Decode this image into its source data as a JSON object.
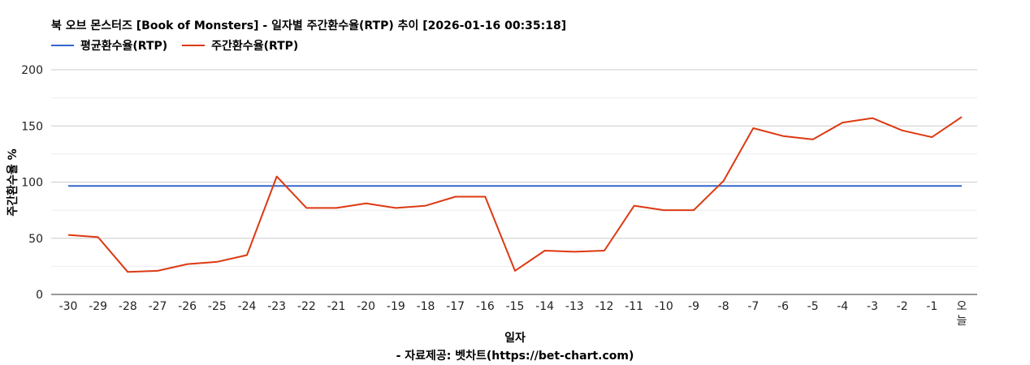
{
  "title": "북 오브 몬스터즈 [Book of Monsters] - 일자별 주간환수율(RTP) 추이 [2026-01-16 00:35:18]",
  "footer": "- 자료제공: 벳차트(https://bet-chart.com)",
  "chart_data": {
    "type": "line",
    "title": "북 오브 몬스터즈 [Book of Monsters] - 일자별 주간환수율(RTP) 추이 [2026-01-16 00:35:18]",
    "xlabel": "일자",
    "ylabel": "주간환수율 %",
    "ylim": [
      0,
      200
    ],
    "yticks": [
      0,
      50,
      100,
      150,
      200
    ],
    "grid": true,
    "legend_position": "top-left",
    "categories": [
      "-30",
      "-29",
      "-28",
      "-27",
      "-26",
      "-25",
      "-24",
      "-23",
      "-22",
      "-21",
      "-20",
      "-19",
      "-18",
      "-17",
      "-16",
      "-15",
      "-14",
      "-13",
      "-12",
      "-11",
      "-10",
      "-9",
      "-8",
      "-7",
      "-6",
      "-5",
      "-4",
      "-3",
      "-2",
      "-1",
      "오늘"
    ],
    "series": [
      {
        "name": "평균환수율(RTP)",
        "color": "#3366cc",
        "values": [
          96.5,
          96.5,
          96.5,
          96.5,
          96.5,
          96.5,
          96.5,
          96.5,
          96.5,
          96.5,
          96.5,
          96.5,
          96.5,
          96.5,
          96.5,
          96.5,
          96.5,
          96.5,
          96.5,
          96.5,
          96.5,
          96.5,
          96.5,
          96.5,
          96.5,
          96.5,
          96.5,
          96.5,
          96.5,
          96.5,
          96.5
        ]
      },
      {
        "name": "주간환수율(RTP)",
        "color": "#dc3912",
        "values": [
          53,
          51,
          20,
          21,
          27,
          29,
          35,
          105,
          77,
          77,
          81,
          77,
          79,
          87,
          87,
          21,
          39,
          38,
          39,
          79,
          75,
          75,
          101,
          148,
          141,
          138,
          153,
          157,
          146,
          140,
          158
        ]
      }
    ]
  }
}
